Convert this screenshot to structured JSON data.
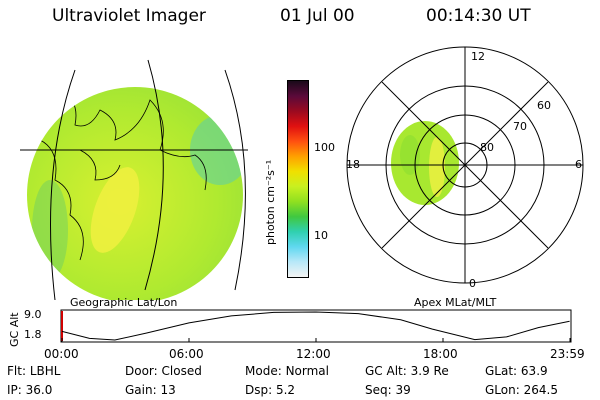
{
  "header": {
    "title": "Ultraviolet Imager",
    "date": "01 Jul 00",
    "time": "00:14:30 UT"
  },
  "colorbar": {
    "label": "photon cm⁻²s⁻¹",
    "ticks": [
      "100",
      "10"
    ],
    "colors": [
      "#1a0a1a",
      "#5a0a3a",
      "#9a0a20",
      "#e01010",
      "#ff5010",
      "#ffa000",
      "#f0e000",
      "#c8f020",
      "#90e020",
      "#40c840",
      "#30d0b0",
      "#60d8f0",
      "#b8e8f8",
      "#f4f4f4"
    ]
  },
  "geo_panel": {
    "caption": "Geographic Lat/Lon"
  },
  "polar_panel": {
    "caption": "Apex MLat/MLT",
    "mlt_labels": {
      "top": "12",
      "left": "18",
      "right": "6",
      "bottom": "0"
    },
    "lat_labels": [
      "60",
      "70",
      "80"
    ]
  },
  "altitude_plot": {
    "ylabel": "GC Alt",
    "yticks": [
      "9.0",
      "1.8"
    ],
    "xticks": [
      "00:00",
      "06:00",
      "12:00",
      "18:00",
      "23:59"
    ],
    "ylim": [
      1.8,
      9.0
    ],
    "hours": [
      0,
      1.3,
      2.5,
      4,
      6,
      8,
      10,
      12,
      14,
      16,
      17.5,
      19.5,
      21,
      22.5,
      23.98
    ],
    "altitude": [
      4.0,
      2.2,
      1.8,
      3.6,
      6.2,
      8.0,
      8.9,
      9.0,
      8.6,
      7.0,
      4.6,
      1.9,
      2.6,
      5.0,
      6.6
    ]
  },
  "status": {
    "row1": [
      {
        "label": "Flt:",
        "value": "LBHL"
      },
      {
        "label": "Door:",
        "value": "Closed"
      },
      {
        "label": "Mode:",
        "value": "Normal"
      },
      {
        "label": "GC Alt:",
        "value": "3.9 Re"
      },
      {
        "label": "GLat:",
        "value": "63.9"
      }
    ],
    "row2": [
      {
        "label": "IP:",
        "value": "36.0"
      },
      {
        "label": "Gain:",
        "value": "13"
      },
      {
        "label": "Dsp:",
        "value": "5.2"
      },
      {
        "label": "Seq:",
        "value": "39"
      },
      {
        "label": "GLon:",
        "value": "264.5"
      }
    ]
  }
}
